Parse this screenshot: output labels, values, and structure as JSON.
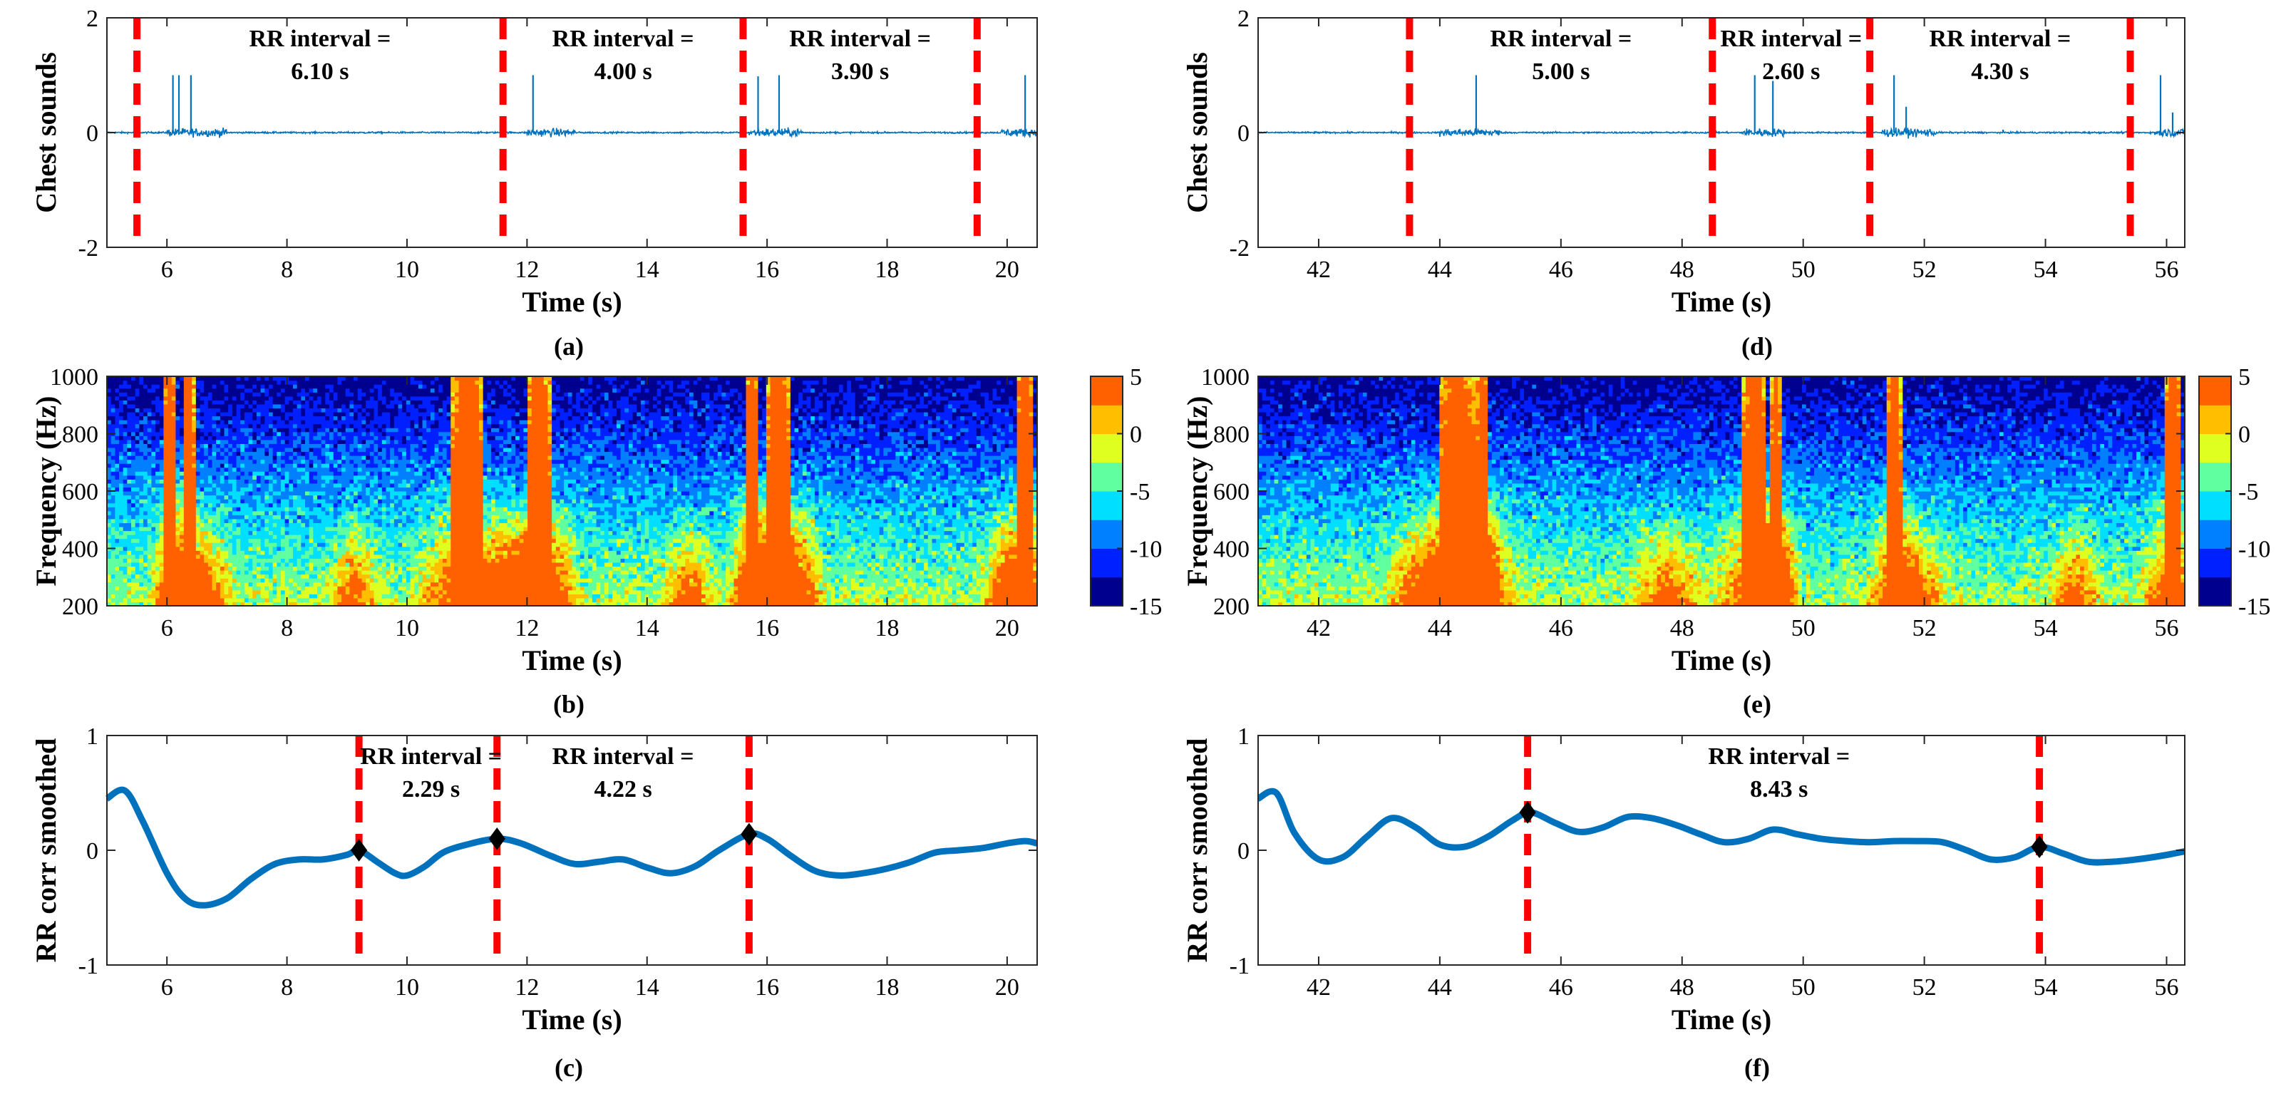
{
  "figure": {
    "panel_labels": [
      "(a)",
      "(b)",
      "(c)",
      "(d)",
      "(e)",
      "(f)"
    ],
    "colors": {
      "signal": "#0072BD",
      "marker": "#FF0000",
      "point": "#000000",
      "colormap": [
        "#00008F",
        "#0020FF",
        "#0080FF",
        "#00DFFF",
        "#60FF9F",
        "#DFFF20",
        "#FFBF00",
        "#FF6000"
      ]
    }
  },
  "chart_data": [
    {
      "id": "a",
      "type": "line",
      "ylabel": "Chest sounds",
      "xlabel": "Time (s)",
      "xlim": [
        5,
        20.5
      ],
      "ylim": [
        -2,
        2
      ],
      "xticks": [
        6,
        8,
        10,
        12,
        14,
        16,
        18,
        20
      ],
      "yticks": [
        -2,
        0,
        2
      ],
      "markers": [
        5.5,
        11.6,
        15.6,
        19.5
      ],
      "spikes": [
        [
          6.1,
          1
        ],
        [
          6.2,
          1
        ],
        [
          6.4,
          1
        ],
        [
          12.1,
          1
        ],
        [
          15.85,
          0.98
        ],
        [
          16.2,
          1
        ],
        [
          20.3,
          1
        ]
      ],
      "noise_bursts": [
        [
          6,
          7
        ],
        [
          12,
          12.8
        ],
        [
          15.7,
          16.6
        ],
        [
          19.9,
          20.5
        ]
      ],
      "annotations": [
        {
          "x": 8.55,
          "lines": [
            "RR interval =",
            "6.10 s"
          ]
        },
        {
          "x": 13.6,
          "lines": [
            "RR interval =",
            "4.00 s"
          ]
        },
        {
          "x": 17.55,
          "lines": [
            "RR interval =",
            "3.90 s"
          ]
        }
      ]
    },
    {
      "id": "d",
      "type": "line",
      "ylabel": "Chest sounds",
      "xlabel": "Time (s)",
      "xlim": [
        41,
        56.3
      ],
      "ylim": [
        -2,
        2
      ],
      "xticks": [
        42,
        44,
        46,
        48,
        50,
        52,
        54,
        56
      ],
      "yticks": [
        -2,
        0,
        2
      ],
      "markers": [
        43.5,
        48.5,
        51.1,
        55.4
      ],
      "spikes": [
        [
          44.6,
          1
        ],
        [
          49.2,
          1
        ],
        [
          49.5,
          0.9
        ],
        [
          51.5,
          1
        ],
        [
          51.7,
          0.45
        ],
        [
          53.3,
          0.05
        ],
        [
          55.9,
          1
        ],
        [
          56.1,
          0.35
        ]
      ],
      "noise_bursts": [
        [
          44,
          45
        ],
        [
          49,
          49.7
        ],
        [
          51.3,
          52.2
        ],
        [
          55.8,
          56.3
        ]
      ],
      "annotations": [
        {
          "x": 46,
          "lines": [
            "RR interval =",
            "5.00 s"
          ]
        },
        {
          "x": 49.8,
          "lines": [
            "RR interval =",
            "2.60 s"
          ]
        },
        {
          "x": 53.25,
          "lines": [
            "RR interval =",
            "4.30 s"
          ]
        }
      ]
    },
    {
      "id": "b",
      "type": "heatmap",
      "ylabel": "Frequency (Hz)",
      "xlabel": "Time (s)",
      "xlim": [
        5,
        20.5
      ],
      "ylim": [
        200,
        1000
      ],
      "xticks": [
        6,
        8,
        10,
        12,
        14,
        16,
        18,
        20
      ],
      "yticks": [
        200,
        400,
        600,
        800,
        1000
      ],
      "clim": [
        -15,
        5
      ],
      "colorbar_ticks": [
        5,
        0,
        -5,
        -10,
        -15
      ],
      "bursts": [
        [
          6.05,
          0.1,
          5
        ],
        [
          6.35,
          0.1,
          5
        ],
        [
          11.0,
          0.25,
          2.5
        ],
        [
          12.2,
          0.2,
          5
        ],
        [
          15.75,
          0.12,
          5
        ],
        [
          16.2,
          0.2,
          5
        ],
        [
          20.3,
          0.15,
          5
        ]
      ],
      "lowfreq_tails": [
        [
          6.2,
          7.2
        ],
        [
          8.6,
          9.6
        ],
        [
          11,
          12.8
        ],
        [
          14.2,
          15.2
        ],
        [
          15.7,
          17
        ],
        [
          19.5,
          20.5
        ]
      ]
    },
    {
      "id": "e",
      "type": "heatmap",
      "ylabel": "Frequency (Hz)",
      "xlabel": "Time (s)",
      "xlim": [
        41,
        56.3
      ],
      "ylim": [
        200,
        1000
      ],
      "xticks": [
        42,
        44,
        46,
        48,
        50,
        52,
        54,
        56
      ],
      "yticks": [
        200,
        400,
        600,
        800,
        1000
      ],
      "clim": [
        -15,
        5
      ],
      "colorbar_ticks": [
        5,
        0,
        -5,
        -10,
        -15
      ],
      "bursts": [
        [
          44.3,
          0.3,
          5
        ],
        [
          44.7,
          0.1,
          4
        ],
        [
          49.2,
          0.2,
          5
        ],
        [
          49.55,
          0.08,
          4
        ],
        [
          51.5,
          0.12,
          5
        ],
        [
          56.1,
          0.15,
          5
        ]
      ],
      "lowfreq_tails": [
        [
          43,
          45
        ],
        [
          47,
          48.5
        ],
        [
          49,
          50
        ],
        [
          51.3,
          52.5
        ],
        [
          54,
          55
        ]
      ]
    },
    {
      "id": "c",
      "type": "line",
      "ylabel": "RR corr smoothed",
      "xlabel": "Time (s)",
      "xlim": [
        5,
        20.5
      ],
      "ylim": [
        -1,
        1
      ],
      "xticks": [
        6,
        8,
        10,
        12,
        14,
        16,
        18,
        20
      ],
      "yticks": [
        -1,
        0,
        1
      ],
      "x": [
        5,
        5.3,
        5.6,
        6,
        6.3,
        6.6,
        7,
        7.4,
        7.8,
        8.2,
        8.6,
        9.0,
        9.2,
        9.5,
        9.8,
        10.0,
        10.3,
        10.6,
        11.0,
        11.5,
        11.9,
        12.4,
        12.8,
        13.2,
        13.6,
        14.0,
        14.4,
        14.8,
        15.2,
        15.7,
        16.0,
        16.4,
        16.8,
        17.2,
        17.6,
        18.0,
        18.4,
        18.8,
        19.2,
        19.6,
        20.0,
        20.3,
        20.5
      ],
      "y": [
        0.45,
        0.52,
        0.25,
        -0.2,
        -0.42,
        -0.48,
        -0.42,
        -0.25,
        -0.12,
        -0.08,
        -0.08,
        -0.04,
        0.0,
        -0.1,
        -0.2,
        -0.22,
        -0.14,
        -0.02,
        0.05,
        0.1,
        0.06,
        -0.05,
        -0.12,
        -0.1,
        -0.08,
        -0.15,
        -0.2,
        -0.14,
        0.0,
        0.14,
        0.1,
        -0.05,
        -0.18,
        -0.22,
        -0.2,
        -0.16,
        -0.1,
        -0.02,
        0.0,
        0.02,
        0.06,
        0.08,
        0.06
      ],
      "markers": [
        9.2,
        11.5,
        15.7
      ],
      "peaks": [
        [
          9.2,
          0.0
        ],
        [
          11.5,
          0.1
        ],
        [
          15.7,
          0.14
        ]
      ],
      "annotations": [
        {
          "x": 10.4,
          "lines": [
            "RR interval =",
            "2.29 s"
          ]
        },
        {
          "x": 13.6,
          "lines": [
            "RR interval =",
            "4.22 s"
          ]
        }
      ]
    },
    {
      "id": "f",
      "type": "line",
      "ylabel": "RR corr smoothed",
      "xlabel": "Time (s)",
      "xlim": [
        41,
        56.3
      ],
      "ylim": [
        -1,
        1
      ],
      "xticks": [
        42,
        44,
        46,
        48,
        50,
        52,
        54,
        56
      ],
      "yticks": [
        -1,
        0,
        1
      ],
      "x": [
        41,
        41.3,
        41.6,
        42,
        42.4,
        42.8,
        43.2,
        43.6,
        44.0,
        44.4,
        44.8,
        45.2,
        45.5,
        45.9,
        46.3,
        46.7,
        47.1,
        47.5,
        47.9,
        48.3,
        48.7,
        49.1,
        49.5,
        49.9,
        50.3,
        50.7,
        51.1,
        51.5,
        51.9,
        52.3,
        52.7,
        53.1,
        53.5,
        53.9,
        54.3,
        54.7,
        55.1,
        55.5,
        55.9,
        56.3
      ],
      "y": [
        0.45,
        0.5,
        0.15,
        -0.08,
        -0.06,
        0.12,
        0.28,
        0.2,
        0.05,
        0.03,
        0.12,
        0.26,
        0.33,
        0.24,
        0.16,
        0.2,
        0.29,
        0.28,
        0.22,
        0.14,
        0.07,
        0.1,
        0.18,
        0.14,
        0.1,
        0.08,
        0.07,
        0.08,
        0.08,
        0.07,
        0.0,
        -0.08,
        -0.06,
        0.03,
        -0.03,
        -0.1,
        -0.1,
        -0.08,
        -0.05,
        -0.01
      ],
      "markers": [
        45.45,
        53.9
      ],
      "peaks": [
        [
          45.45,
          0.33
        ],
        [
          53.9,
          0.03
        ]
      ],
      "annotations": [
        {
          "x": 49.6,
          "lines": [
            "RR interval =",
            "8.43 s"
          ]
        }
      ]
    }
  ]
}
